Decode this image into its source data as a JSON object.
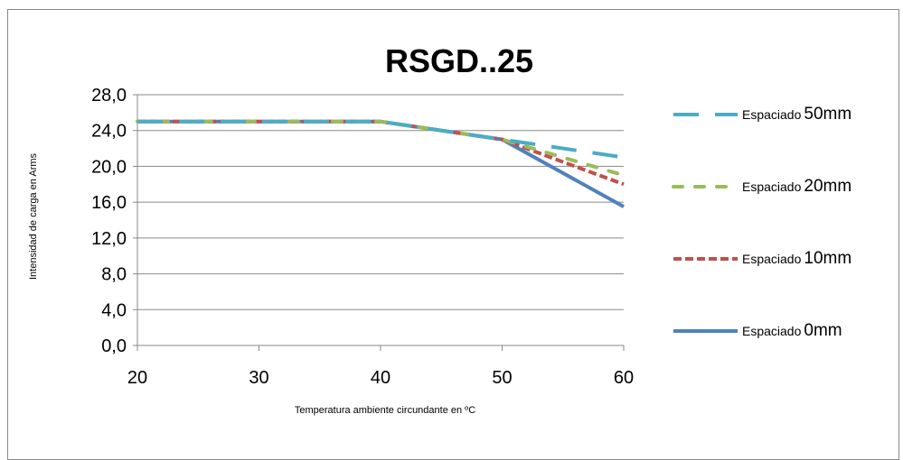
{
  "chart_data": {
    "type": "line",
    "title": "RSGD..25",
    "xlabel": "Temperatura ambiente circundante en ºC",
    "ylabel": "Intensidad de carga en Arms",
    "xlim": [
      20,
      60
    ],
    "ylim": [
      0,
      28
    ],
    "x_ticks": [
      "20",
      "30",
      "40",
      "50",
      "60"
    ],
    "y_ticks": [
      "0,0",
      "4,0",
      "8,0",
      "12,0",
      "16,0",
      "20,0",
      "24,0",
      "28,0"
    ],
    "legend_position": "right",
    "series": [
      {
        "name": "Espaciado 50mm",
        "name_prefix": "Espaciado",
        "name_suffix": "50mm",
        "color": "#4bacc6",
        "style": "long-dash",
        "x": [
          20,
          40,
          50,
          60
        ],
        "values": [
          25,
          25,
          23,
          21
        ]
      },
      {
        "name": "Espaciado 20mm",
        "name_prefix": "Espaciado",
        "name_suffix": "20mm",
        "color": "#9bbb59",
        "style": "dash",
        "x": [
          20,
          40,
          50,
          60
        ],
        "values": [
          25,
          25,
          23,
          19
        ]
      },
      {
        "name": "Espaciado 10mm",
        "name_prefix": "Espaciado",
        "name_suffix": "10mm",
        "color": "#c0504d",
        "style": "short-dash",
        "x": [
          20,
          40,
          50,
          60
        ],
        "values": [
          25,
          25,
          23,
          18
        ]
      },
      {
        "name": "Espaciado 0mm",
        "name_prefix": "Espaciado",
        "name_suffix": "0mm",
        "color": "#4f81bd",
        "style": "solid",
        "x": [
          20,
          40,
          50,
          60
        ],
        "values": [
          25,
          25,
          23,
          15.5
        ]
      }
    ]
  }
}
